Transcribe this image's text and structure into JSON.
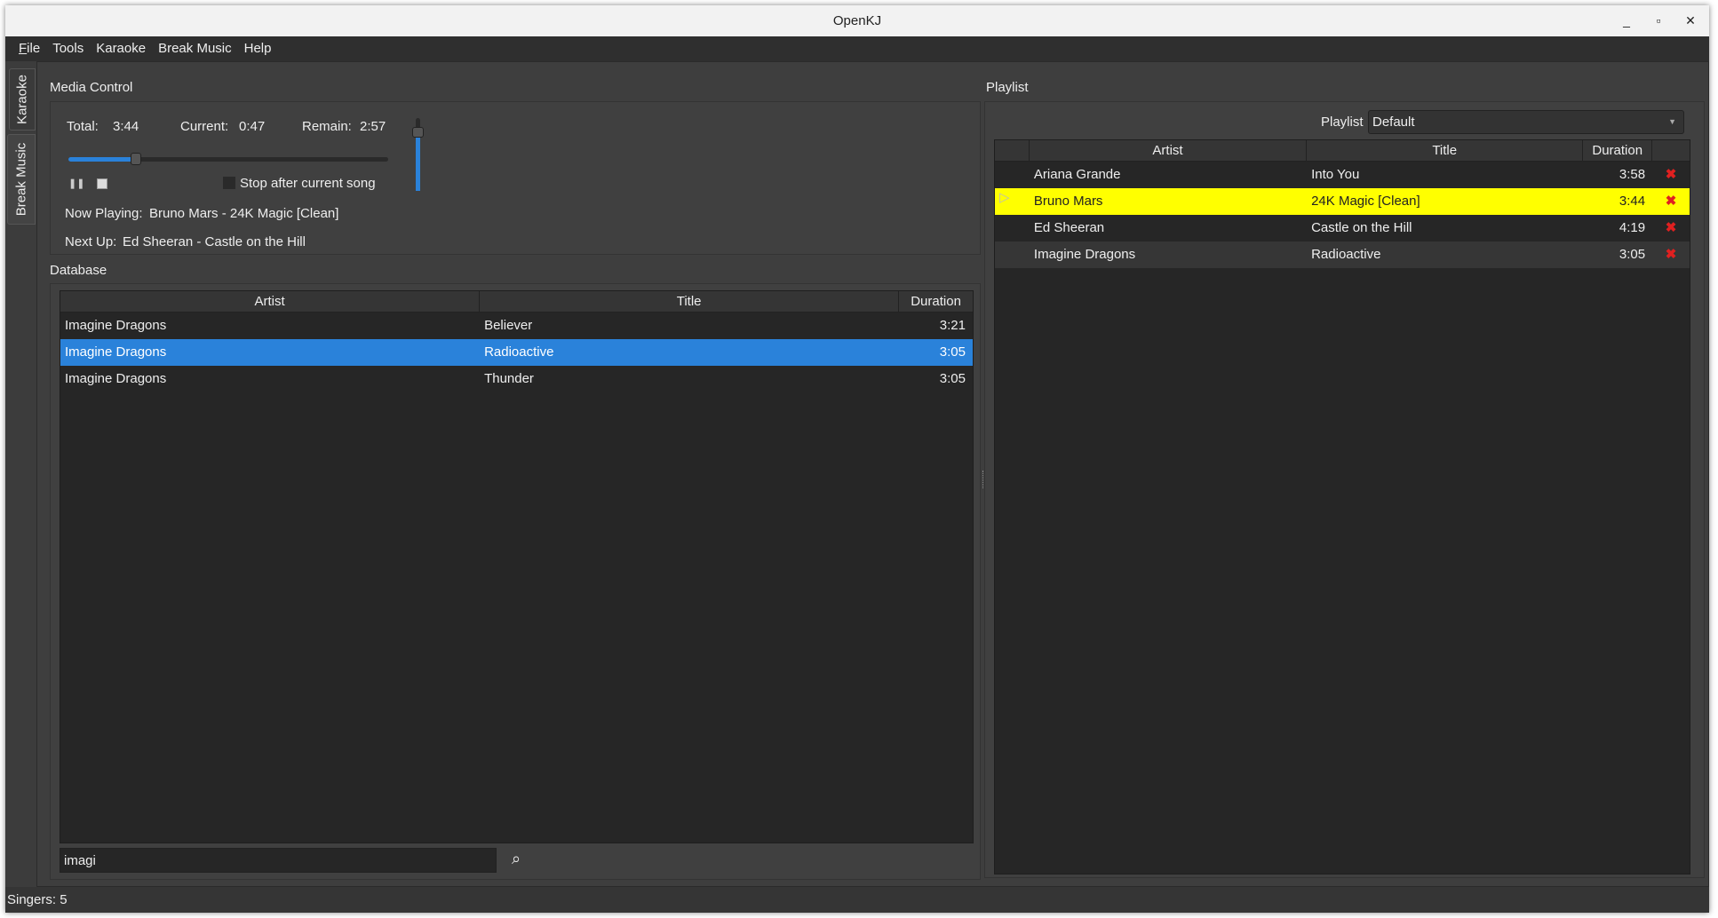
{
  "window": {
    "title": "OpenKJ"
  },
  "menu": [
    "File",
    "Tools",
    "Karaoke",
    "Break Music",
    "Help"
  ],
  "side_tabs": [
    "Karaoke",
    "Break Music"
  ],
  "media": {
    "label": "Media Control",
    "total_label": "Total:",
    "total": "3:44",
    "current_label": "Current:",
    "current": "0:47",
    "remain_label": "Remain:",
    "remain": "2:57",
    "progress_fraction": 0.21,
    "volume_fraction": 0.8,
    "stop_after": "Stop after current song",
    "stop_after_checked": false,
    "now_playing_label": "Now Playing:",
    "now_playing": "Bruno Mars - 24K Magic [Clean]",
    "next_up_label": "Next Up:",
    "next_up": "Ed Sheeran - Castle on the Hill"
  },
  "database": {
    "label": "Database",
    "columns": [
      "Artist",
      "Title",
      "Duration"
    ],
    "rows": [
      {
        "artist": "Imagine Dragons",
        "title": "Believer",
        "duration": "3:21"
      },
      {
        "artist": "Imagine Dragons",
        "title": "Radioactive",
        "duration": "3:05",
        "selected": true
      },
      {
        "artist": "Imagine Dragons",
        "title": "Thunder",
        "duration": "3:05"
      }
    ],
    "search_value": "imagi"
  },
  "playlist": {
    "label": "Playlist",
    "combo_label": "Playlist",
    "combo_value": "Default",
    "columns": [
      "",
      "Artist",
      "Title",
      "Duration",
      ""
    ],
    "rows": [
      {
        "artist": "Ariana Grande",
        "title": "Into You",
        "duration": "3:58"
      },
      {
        "artist": "Bruno Mars",
        "title": "24K Magic [Clean]",
        "duration": "3:44",
        "playing": true
      },
      {
        "artist": "Ed Sheeran",
        "title": "Castle on the Hill",
        "duration": "4:19"
      },
      {
        "artist": "Imagine Dragons",
        "title": "Radioactive",
        "duration": "3:05"
      }
    ]
  },
  "status": {
    "singers": "Singers: 5"
  },
  "colors": {
    "selection": "#2a82da",
    "playing": "#ffff00",
    "delete": "#e02020"
  }
}
